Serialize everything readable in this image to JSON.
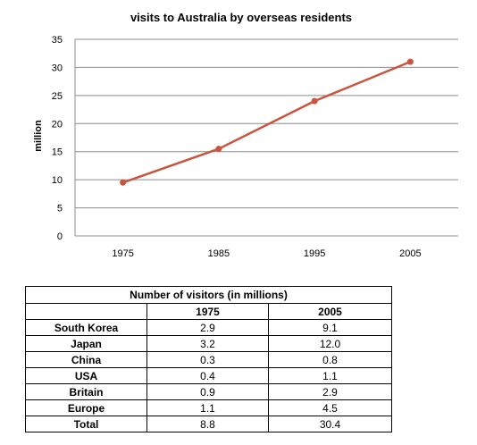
{
  "chart_data": {
    "type": "line",
    "title": "visits to Australia by overseas residents",
    "ylabel": "million",
    "xlabel": "",
    "x": [
      "1975",
      "1985",
      "1995",
      "2005"
    ],
    "series": [
      {
        "values": [
          9.5,
          15.5,
          24,
          31
        ],
        "color": "#c8553d"
      }
    ],
    "ylim": [
      0,
      35
    ],
    "yticks": [
      "0",
      "5",
      "10",
      "15",
      "20",
      "25",
      "30",
      "35"
    ],
    "grid": true,
    "legend": "none"
  },
  "table": {
    "caption": "Number of visitors (in millions)",
    "headers": [
      "",
      "1975",
      "2005"
    ],
    "rows": [
      {
        "label": "South Korea",
        "v1975": "2.9",
        "v2005": "9.1"
      },
      {
        "label": "Japan",
        "v1975": "3.2",
        "v2005": "12.0"
      },
      {
        "label": "China",
        "v1975": "0.3",
        "v2005": "0.8"
      },
      {
        "label": "USA",
        "v1975": "0.4",
        "v2005": "1.1"
      },
      {
        "label": "Britain",
        "v1975": "0.9",
        "v2005": "2.9"
      },
      {
        "label": "Europe",
        "v1975": "1.1",
        "v2005": "4.5"
      },
      {
        "label": "Total",
        "v1975": "8.8",
        "v2005": "30.4"
      }
    ]
  }
}
